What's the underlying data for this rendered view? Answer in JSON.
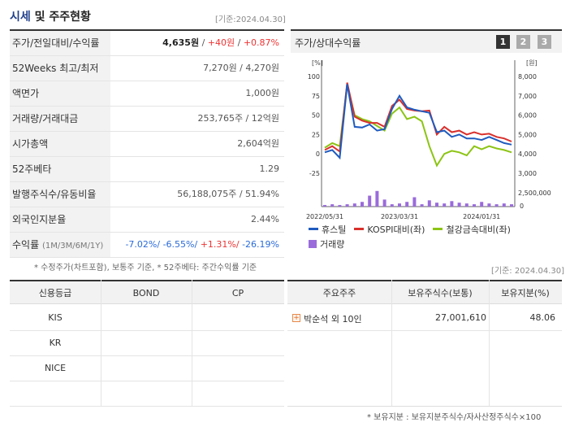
{
  "header": {
    "title_part1": "시세",
    "title_part2": "및 주주현황",
    "base_date": "[기준:2024.04.30]"
  },
  "price_rows": [
    {
      "label": "주가/전일대비/수익률",
      "value_main": "4,635원",
      "value_rest1": " / ",
      "value_change": "+40원",
      "value_rest2": " / ",
      "value_pct": "+0.87%"
    },
    {
      "label": "52Weeks 최고/최저",
      "value": "7,270원 / 4,270원"
    },
    {
      "label": "액면가",
      "value": "1,000원"
    },
    {
      "label": "거래량/거래대금",
      "value": "253,765주 / 12억원"
    },
    {
      "label": "시가총액",
      "value": "2,604억원"
    },
    {
      "label": "52주베타",
      "value": "1.29"
    },
    {
      "label": "발행주식수/유동비율",
      "value": "56,188,075주 / 51.94%"
    },
    {
      "label": "외국인지분율",
      "value": "2.44%"
    }
  ],
  "returns_row": {
    "label": "수익률",
    "sub": "(1M/3M/6M/1Y)",
    "r1": "-7.02%/",
    "r2": " -6.55%/",
    "r3": " +1.31%/",
    "r4": " -26.19%"
  },
  "footnote_left": "* 수정주가(차트포함), 보통주 기준, * 52주베타: 주간수익률 기준",
  "chart_panel": {
    "title": "주가/상대수익률",
    "buttons": [
      "1",
      "2",
      "3"
    ],
    "left_unit": "[%]",
    "right_unit": "[원]",
    "left_ticks": [
      "100",
      "75",
      "50",
      "25",
      "0",
      "-25"
    ],
    "right_ticks": [
      "8,000",
      "7,000",
      "6,000",
      "5,000",
      "4,000",
      "3,000"
    ],
    "volume_tick": "2,500,000",
    "volume_zero": "0",
    "x_ticks": [
      "2022/05/31",
      "2023/03/31",
      "2024/01/31"
    ]
  },
  "chart_data": {
    "type": "line",
    "x": [
      "2022/05/31",
      "",
      "",
      "",
      "",
      "",
      "",
      "",
      "",
      "",
      "2023/03/31",
      "",
      "",
      "",
      "",
      "",
      "",
      "",
      "",
      "",
      "",
      "2024/01/31",
      "",
      "",
      "",
      ""
    ],
    "series": [
      {
        "name": "휴스틸",
        "color": "#1f5bbf",
        "values": [
          2,
          5,
          -5,
          90,
          35,
          34,
          38,
          30,
          32,
          58,
          75,
          60,
          57,
          55,
          53,
          28,
          30,
          22,
          25,
          20,
          20,
          18,
          22,
          18,
          14,
          12
        ]
      },
      {
        "name": "KOSPI대비(좌)",
        "color": "#d9302c",
        "values": [
          5,
          10,
          3,
          92,
          48,
          43,
          40,
          40,
          35,
          62,
          70,
          58,
          56,
          55,
          56,
          25,
          35,
          28,
          30,
          25,
          28,
          25,
          26,
          22,
          20,
          16
        ]
      },
      {
        "name": "철강금속대비(좌)",
        "color": "#8cc414",
        "values": [
          8,
          14,
          10,
          90,
          50,
          45,
          42,
          36,
          30,
          52,
          60,
          45,
          48,
          42,
          10,
          -15,
          0,
          4,
          2,
          -2,
          10,
          6,
          10,
          7,
          5,
          2
        ]
      }
    ],
    "volume": {
      "name": "거래량",
      "color": "#9a6bdb",
      "values": [
        0.2,
        0.3,
        0.2,
        0.3,
        0.4,
        0.6,
        1.4,
        2.0,
        0.9,
        0.3,
        0.4,
        0.6,
        1.2,
        0.3,
        0.8,
        0.5,
        0.4,
        0.7,
        0.5,
        0.4,
        0.3,
        0.6,
        0.4,
        0.3,
        0.4,
        0.3
      ]
    },
    "ylim_left": [
      -25,
      100
    ],
    "ylim_right": [
      3000,
      8000
    ]
  },
  "legend": [
    {
      "label": "휴스틸",
      "color": "#1f5bbf",
      "kind": "line"
    },
    {
      "label": "KOSPI대비(좌)",
      "color": "#d9302c",
      "kind": "line"
    },
    {
      "label": "철강금속대비(좌)",
      "color": "#8cc414",
      "kind": "line"
    },
    {
      "label": "거래량",
      "color": "#9a6bdb",
      "kind": "box"
    }
  ],
  "base_date_right": "[기준: 2024.04.30]",
  "credit_table": {
    "headers": [
      "신용등급",
      "BOND",
      "CP"
    ],
    "rows": [
      "KIS",
      "KR",
      "NICE",
      ""
    ]
  },
  "holder_table": {
    "headers": [
      "주요주주",
      "보유주식수(보통)",
      "보유지분(%)"
    ],
    "rows": [
      {
        "name": "박순석 외 10인",
        "shares": "27,001,610",
        "pct": "48.06"
      }
    ]
  },
  "footnote_right": "* 보유지분 : 보유지분주식수/자사산정주식수×100"
}
